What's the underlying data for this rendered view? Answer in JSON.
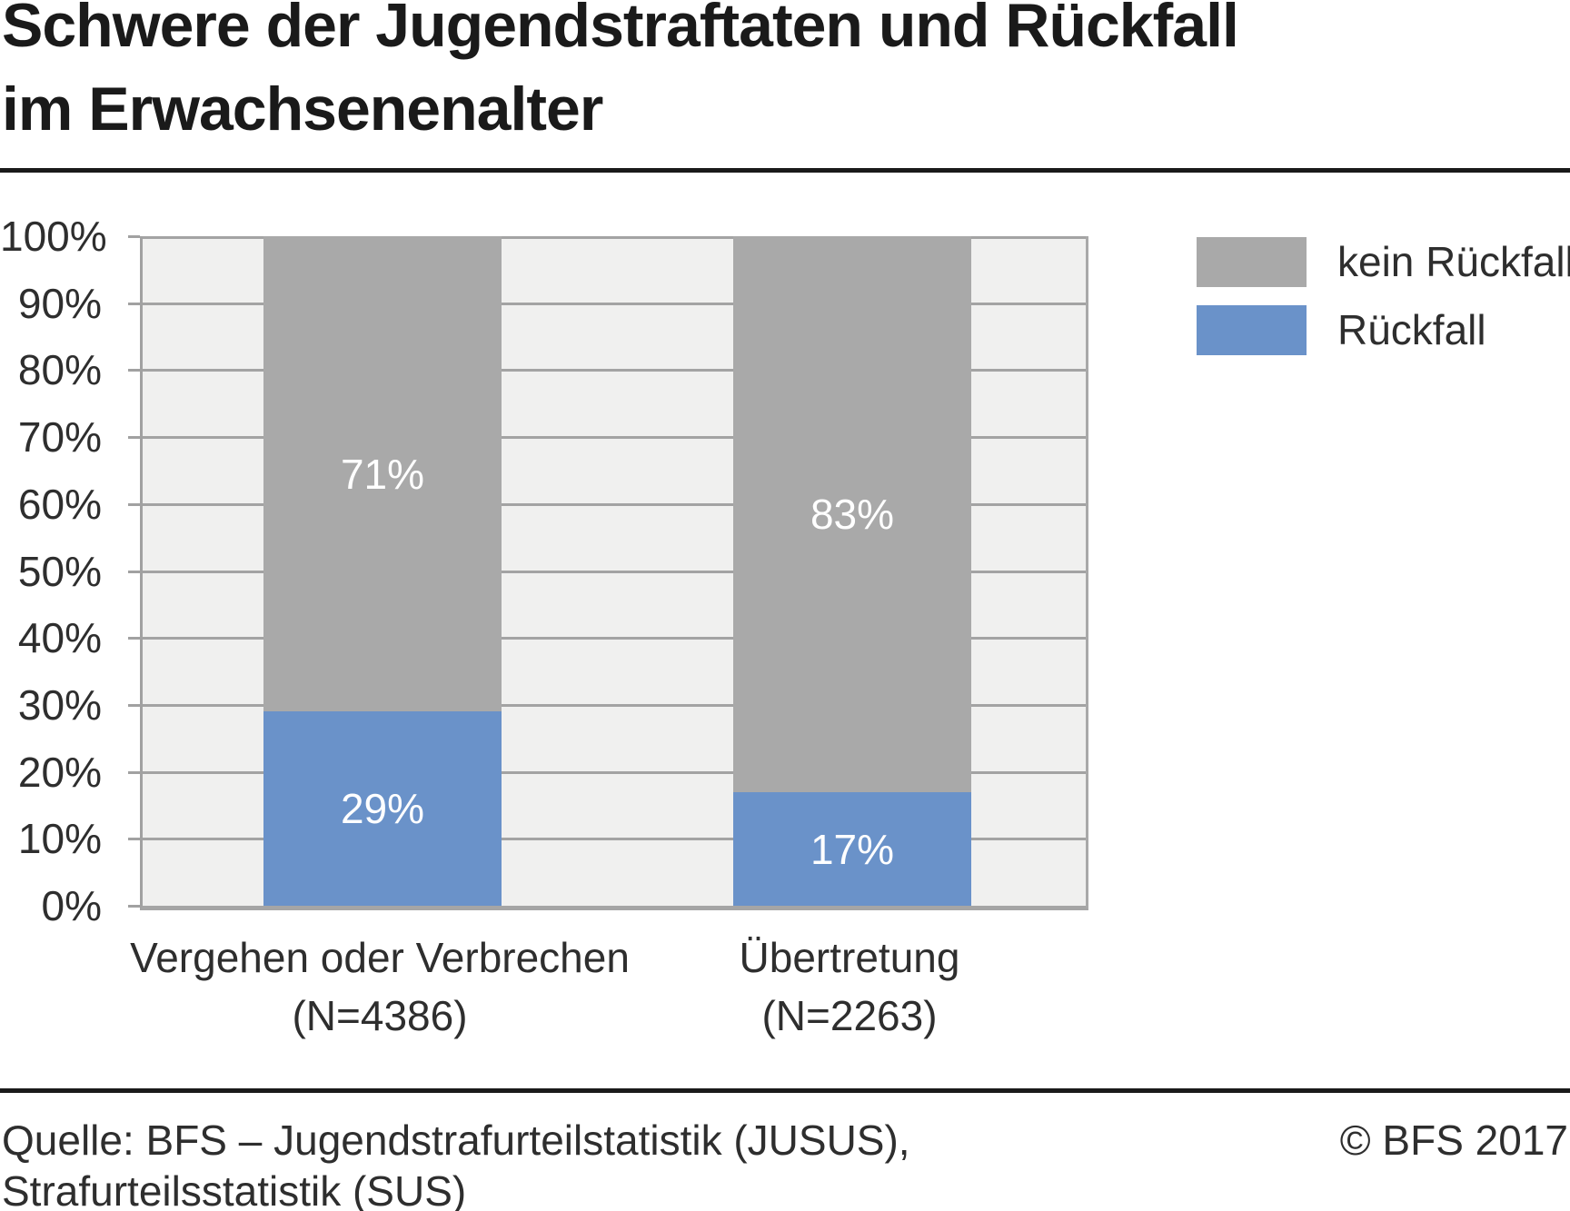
{
  "title": {
    "line1": "Schwere der Jugendstraftaten und Rückfall",
    "line2": "im Erwachsenenalter"
  },
  "chart_data": {
    "type": "bar",
    "stacked": true,
    "orientation": "vertical",
    "categories": [
      "Vergehen oder Verbrechen",
      "Übertretung"
    ],
    "category_notes": [
      "(N=4386)",
      "(N=2263)"
    ],
    "series": [
      {
        "name": "Rückfall",
        "color": "#6a92c9",
        "values": [
          29,
          17
        ]
      },
      {
        "name": "kein Rückfall",
        "color": "#a9a9a9",
        "values": [
          71,
          83
        ]
      }
    ],
    "value_suffix": "%",
    "ylim": [
      0,
      100
    ],
    "yticks": [
      "0%",
      "10%",
      "20%",
      "30%",
      "40%",
      "50%",
      "60%",
      "70%",
      "80%",
      "90%",
      "100%"
    ],
    "grid": true,
    "legend": [
      "kein Rückfall",
      "Rückfall"
    ],
    "legend_position": "top-right",
    "bar_label_color": "#ffffff"
  },
  "footer": {
    "source_line1": "Quelle: BFS – Jugendstrafurteilstatistik (JUSUS),",
    "source_line2": "Strafurteilsstatistik (SUS)",
    "copyright": "© BFS 2017"
  },
  "colors": {
    "rueckfall": "#6a92c9",
    "kein_rueckfall": "#a9a9a9",
    "plot_background": "#f0f0ef",
    "grid": "#a3a3a3",
    "text": "#2e2e2e",
    "title": "#1a1a1a"
  }
}
